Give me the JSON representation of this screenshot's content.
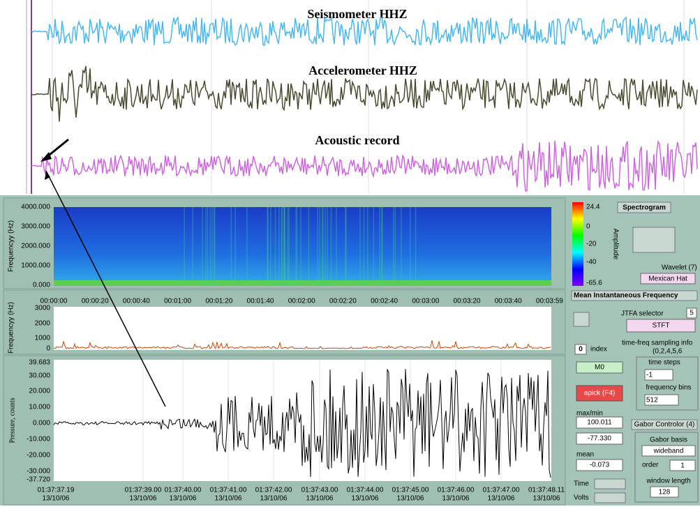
{
  "waveform_panel": {
    "labels": [
      "Seismometer HHZ",
      "Accelerometer HHZ",
      "Acoustic record"
    ]
  },
  "spectrogram": {
    "title": "Spectrogram",
    "y_axis_label": "Frequencyy (Hz)",
    "yticks": [
      "4000.000",
      "3000.000",
      "2000.000",
      "1000.000",
      "0.000"
    ],
    "colorbar_label": "Amplitude",
    "colorbar_ticks": [
      "24.4",
      "0",
      "-20",
      "-40",
      "-65.6"
    ]
  },
  "time_axis": {
    "ticks": [
      "00:00:00",
      "00:00:20",
      "00:00:40",
      "00:01:00",
      "00:01:20",
      "00:01:40",
      "00:02:00",
      "00:02:20",
      "00:02:40",
      "00:03:00",
      "00:03:20",
      "00:03:40",
      "00:03:59"
    ]
  },
  "mean_freq": {
    "title": "Mean Instantaneous Frequency",
    "y_axis_label": "Frequencyy (Hz)",
    "yticks": [
      "3000",
      "2000",
      "1000",
      "0"
    ]
  },
  "pressure": {
    "y_axis_label": "Pressure, counts",
    "yticks": [
      "39.683",
      "30.000",
      "20.000",
      "10.000",
      "0.000",
      "-10.000",
      "-20.000",
      "-30.000",
      "-37.720"
    ],
    "xticks": [
      {
        "time": "01:37:37.19",
        "date": "13/10/06"
      },
      {
        "time": "01:37:39.00",
        "date": "13/10/06"
      },
      {
        "time": "01:37:40.00",
        "date": "13/10/06"
      },
      {
        "time": "01:37:41.00",
        "date": "13/10/06"
      },
      {
        "time": "01:37:42.00",
        "date": "13/10/06"
      },
      {
        "time": "01:37:43.00",
        "date": "13/10/06"
      },
      {
        "time": "01:37:44.00",
        "date": "13/10/06"
      },
      {
        "time": "01:37:45.00",
        "date": "13/10/06"
      },
      {
        "time": "01:37:46.00",
        "date": "13/10/06"
      },
      {
        "time": "01:37:47.00",
        "date": "13/10/06"
      },
      {
        "time": "01:37:48.11",
        "date": "13/10/06"
      }
    ]
  },
  "controls": {
    "wavelet_label": "Wavelet (7)",
    "wavelet": "Mexican Hat",
    "jtfa_label": "JTFA selector",
    "jtfa_num": "5",
    "jtfa": "STFT",
    "index_value": "0",
    "index_label": "index",
    "sampling_label": "time-freq sampling info",
    "sampling_value": "(0,2,4,5,6",
    "m0": "M0",
    "time_steps_label": "time steps",
    "time_steps": "-1",
    "freq_bins_label": "frequency bins",
    "freq_bins": "512",
    "apick": "apick (F4)",
    "maxmin_label": "max/min",
    "max": "100.011",
    "min": "-77.330",
    "mean_label": "mean",
    "mean": "-0.073",
    "gabor_title": "Gabor Controlor (4)",
    "gabor_basis_label": "Gabor basis",
    "gabor_basis": "wideband",
    "order_label": "order",
    "order": "1",
    "window_label": "window length",
    "window": "128",
    "time_label": "Time",
    "volts_label": "Volts"
  }
}
